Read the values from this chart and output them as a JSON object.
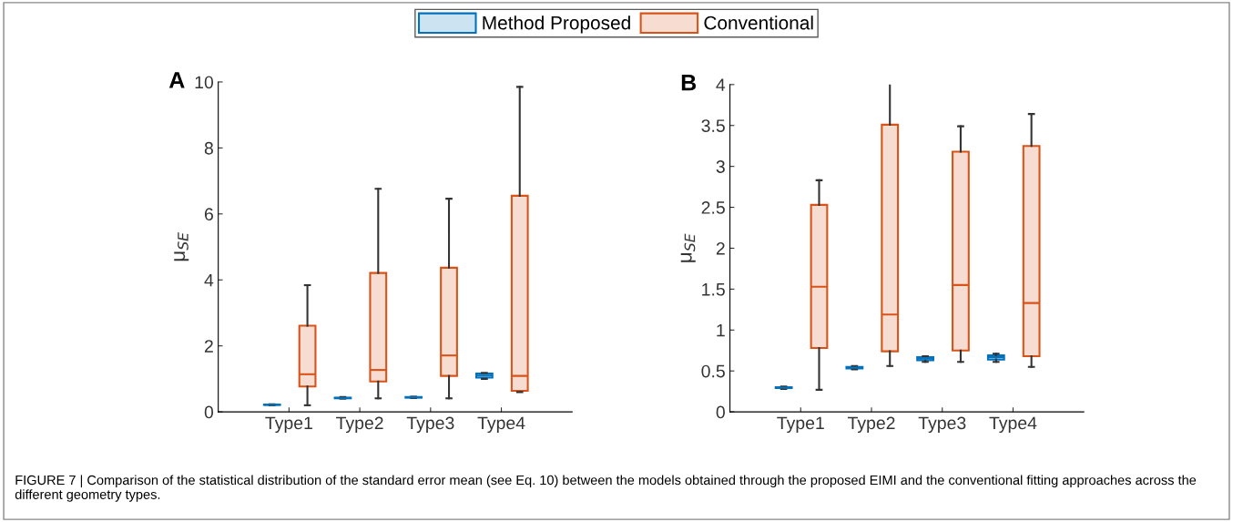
{
  "chart_data": [
    {
      "type": "box",
      "ylabel": "μ$_{SE}$",
      "categories": [
        "Type1",
        "Type2",
        "Type3",
        "Type4"
      ],
      "ylim": [
        0,
        10
      ],
      "yticks": [
        0,
        2,
        4,
        6,
        8,
        10
      ],
      "legend": "top",
      "grid": false,
      "annotations": [
        "A",
        "FIGURE 7 | Comparison of the statistical distribution of the standard error mean (see Eq. 10) between the models obtained through the proposed EIMI and the conventional fitting approaches across the different geometry types."
      ],
      "series": [
        {
          "name": "Method Proposed",
          "color": "#0072bd",
          "boxes": [
            {
              "low": 0.2,
              "q1": 0.21,
              "median": 0.215,
              "q3": 0.22,
              "high": 0.23
            },
            {
              "low": 0.4,
              "q1": 0.41,
              "median": 0.42,
              "q3": 0.43,
              "high": 0.45
            },
            {
              "low": 0.42,
              "q1": 0.43,
              "median": 0.44,
              "q3": 0.45,
              "high": 0.46
            },
            {
              "low": 1.0,
              "q1": 1.04,
              "median": 1.1,
              "q3": 1.16,
              "high": 1.18
            }
          ]
        },
        {
          "name": "Conventional",
          "color": "#d95319",
          "boxes": [
            {
              "low": 0.2,
              "q1": 0.77,
              "median": 1.14,
              "q3": 2.61,
              "high": 3.84
            },
            {
              "low": 0.41,
              "q1": 0.92,
              "median": 1.27,
              "q3": 4.21,
              "high": 6.76
            },
            {
              "low": 0.41,
              "q1": 1.09,
              "median": 1.71,
              "q3": 4.37,
              "high": 6.46
            },
            {
              "low": 0.6,
              "q1": 0.64,
              "median": 1.09,
              "q3": 6.55,
              "high": 9.85
            }
          ]
        }
      ]
    },
    {
      "type": "box",
      "ylabel": "μ$_{SE}$",
      "categories": [
        "Type1",
        "Type2",
        "Type3",
        "Type4"
      ],
      "ylim": [
        0,
        4
      ],
      "yticks": [
        0,
        0.5,
        1,
        1.5,
        2,
        2.5,
        3,
        3.5,
        4
      ],
      "legend": "top",
      "grid": false,
      "annotations": [
        "B"
      ],
      "series": [
        {
          "name": "Method Proposed",
          "color": "#0072bd",
          "boxes": [
            {
              "low": 0.28,
              "q1": 0.29,
              "median": 0.295,
              "q3": 0.3,
              "high": 0.31
            },
            {
              "low": 0.52,
              "q1": 0.53,
              "median": 0.54,
              "q3": 0.55,
              "high": 0.56
            },
            {
              "low": 0.61,
              "q1": 0.63,
              "median": 0.65,
              "q3": 0.67,
              "high": 0.68
            },
            {
              "low": 0.61,
              "q1": 0.64,
              "median": 0.67,
              "q3": 0.69,
              "high": 0.71
            }
          ]
        },
        {
          "name": "Conventional",
          "color": "#d95319",
          "boxes": [
            {
              "low": 0.27,
              "q1": 0.78,
              "median": 1.53,
              "q3": 2.53,
              "high": 2.83
            },
            {
              "low": 0.56,
              "q1": 0.74,
              "median": 1.19,
              "q3": 3.51,
              "high": 4.03
            },
            {
              "low": 0.61,
              "q1": 0.75,
              "median": 1.55,
              "q3": 3.18,
              "high": 3.49
            },
            {
              "low": 0.55,
              "q1": 0.68,
              "median": 1.33,
              "q3": 3.25,
              "high": 3.64
            }
          ]
        }
      ]
    }
  ]
}
